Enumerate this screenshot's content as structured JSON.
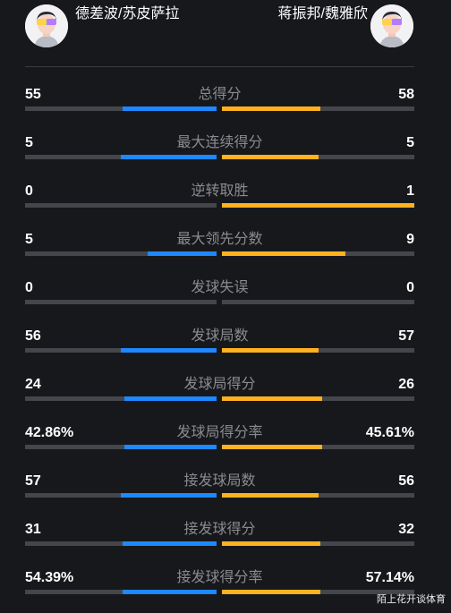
{
  "header": {
    "left_team": "德差波/苏皮萨拉",
    "right_team": "蒋振邦/魏雅欣",
    "left_avatar_icon": "player-avatar-icon",
    "right_avatar_icon": "player-avatar-icon"
  },
  "stats": [
    {
      "label": "总得分",
      "left": "55",
      "right": "58",
      "left_frac": 0.49,
      "right_frac": 0.51
    },
    {
      "label": "最大连续得分",
      "left": "5",
      "right": "5",
      "left_frac": 0.5,
      "right_frac": 0.5
    },
    {
      "label": "逆转取胜",
      "left": "0",
      "right": "1",
      "left_frac": 0.0,
      "right_frac": 1.0
    },
    {
      "label": "最大领先分数",
      "left": "5",
      "right": "9",
      "left_frac": 0.36,
      "right_frac": 0.64
    },
    {
      "label": "发球失误",
      "left": "0",
      "right": "0",
      "left_frac": 0.0,
      "right_frac": 0.0
    },
    {
      "label": "发球局数",
      "left": "56",
      "right": "57",
      "left_frac": 0.5,
      "right_frac": 0.5
    },
    {
      "label": "发球局得分",
      "left": "24",
      "right": "26",
      "left_frac": 0.48,
      "right_frac": 0.52
    },
    {
      "label": "发球局得分率",
      "left": "42.86%",
      "right": "45.61%",
      "left_frac": 0.48,
      "right_frac": 0.52
    },
    {
      "label": "接发球局数",
      "left": "57",
      "right": "56",
      "left_frac": 0.5,
      "right_frac": 0.5
    },
    {
      "label": "接发球得分",
      "left": "31",
      "right": "32",
      "left_frac": 0.49,
      "right_frac": 0.51
    },
    {
      "label": "接发球得分率",
      "left": "54.39%",
      "right": "57.14%",
      "left_frac": 0.49,
      "right_frac": 0.51
    }
  ],
  "colors": {
    "left_bar": "#1e88ff",
    "right_bar": "#ffb21e",
    "track": "#45464b"
  },
  "watermark": "陌上花开谈体育"
}
